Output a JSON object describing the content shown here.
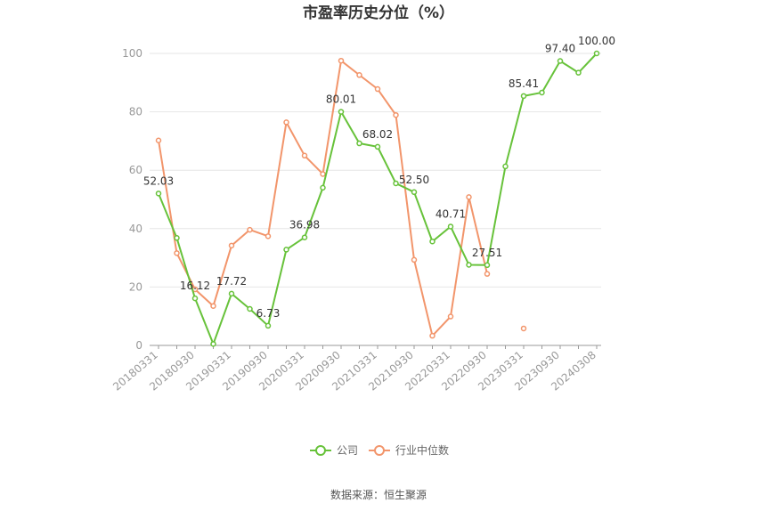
{
  "chart_data": {
    "type": "line",
    "title": "市盈率历史分位（%）",
    "xlabel": "",
    "ylabel": "",
    "ylim": [
      0,
      100
    ],
    "yticks": [
      0,
      20,
      40,
      60,
      80,
      100
    ],
    "grid": true,
    "legend_placement": "bottom-center",
    "x_tick_labels": [
      "20180331",
      "20180930",
      "20190331",
      "20190930",
      "20200331",
      "20200930",
      "20210331",
      "20210930",
      "20220331",
      "20220930",
      "20230331",
      "20230930",
      "20240308"
    ],
    "x": [
      "20180331",
      "20180630",
      "20180930",
      "20181231",
      "20190331",
      "20190630",
      "20190930",
      "20191231",
      "20200331",
      "20200630",
      "20200930",
      "20201231",
      "20210331",
      "20210630",
      "20210930",
      "20211231",
      "20220331",
      "20220630",
      "20220930",
      "20221231",
      "20230331",
      "20230630",
      "20230930",
      "20231231",
      "20240308"
    ],
    "series": [
      {
        "name": "公司",
        "color": "#67c23a",
        "values": [
          52.03,
          36.8,
          16.12,
          0.5,
          17.72,
          12.5,
          6.73,
          32.8,
          36.98,
          54.0,
          80.01,
          69.2,
          68.02,
          55.5,
          52.5,
          35.6,
          40.71,
          27.6,
          27.51,
          61.3,
          85.41,
          86.6,
          97.4,
          93.4,
          100.0
        ]
      },
      {
        "name": "行业中位数",
        "color": "#f2956b",
        "values": [
          70.2,
          31.6,
          19.2,
          13.5,
          34.2,
          39.6,
          37.4,
          76.4,
          65.0,
          58.7,
          97.5,
          92.6,
          87.8,
          78.9,
          29.3,
          3.3,
          9.9,
          50.8,
          24.5,
          null,
          5.8,
          null,
          null,
          null,
          null
        ]
      }
    ],
    "data_labels": [
      {
        "index": 0,
        "text": "52.03"
      },
      {
        "index": 2,
        "text": "16.12"
      },
      {
        "index": 4,
        "text": "17.72"
      },
      {
        "index": 6,
        "text": "6.73"
      },
      {
        "index": 8,
        "text": "36.98"
      },
      {
        "index": 10,
        "text": "80.01"
      },
      {
        "index": 12,
        "text": "68.02"
      },
      {
        "index": 14,
        "text": "52.50"
      },
      {
        "index": 16,
        "text": "40.71"
      },
      {
        "index": 18,
        "text": "27.51"
      },
      {
        "index": 20,
        "text": "85.41"
      },
      {
        "index": 22,
        "text": "97.40"
      },
      {
        "index": 24,
        "text": "100.00"
      }
    ],
    "source": "数据来源：恒生聚源"
  }
}
